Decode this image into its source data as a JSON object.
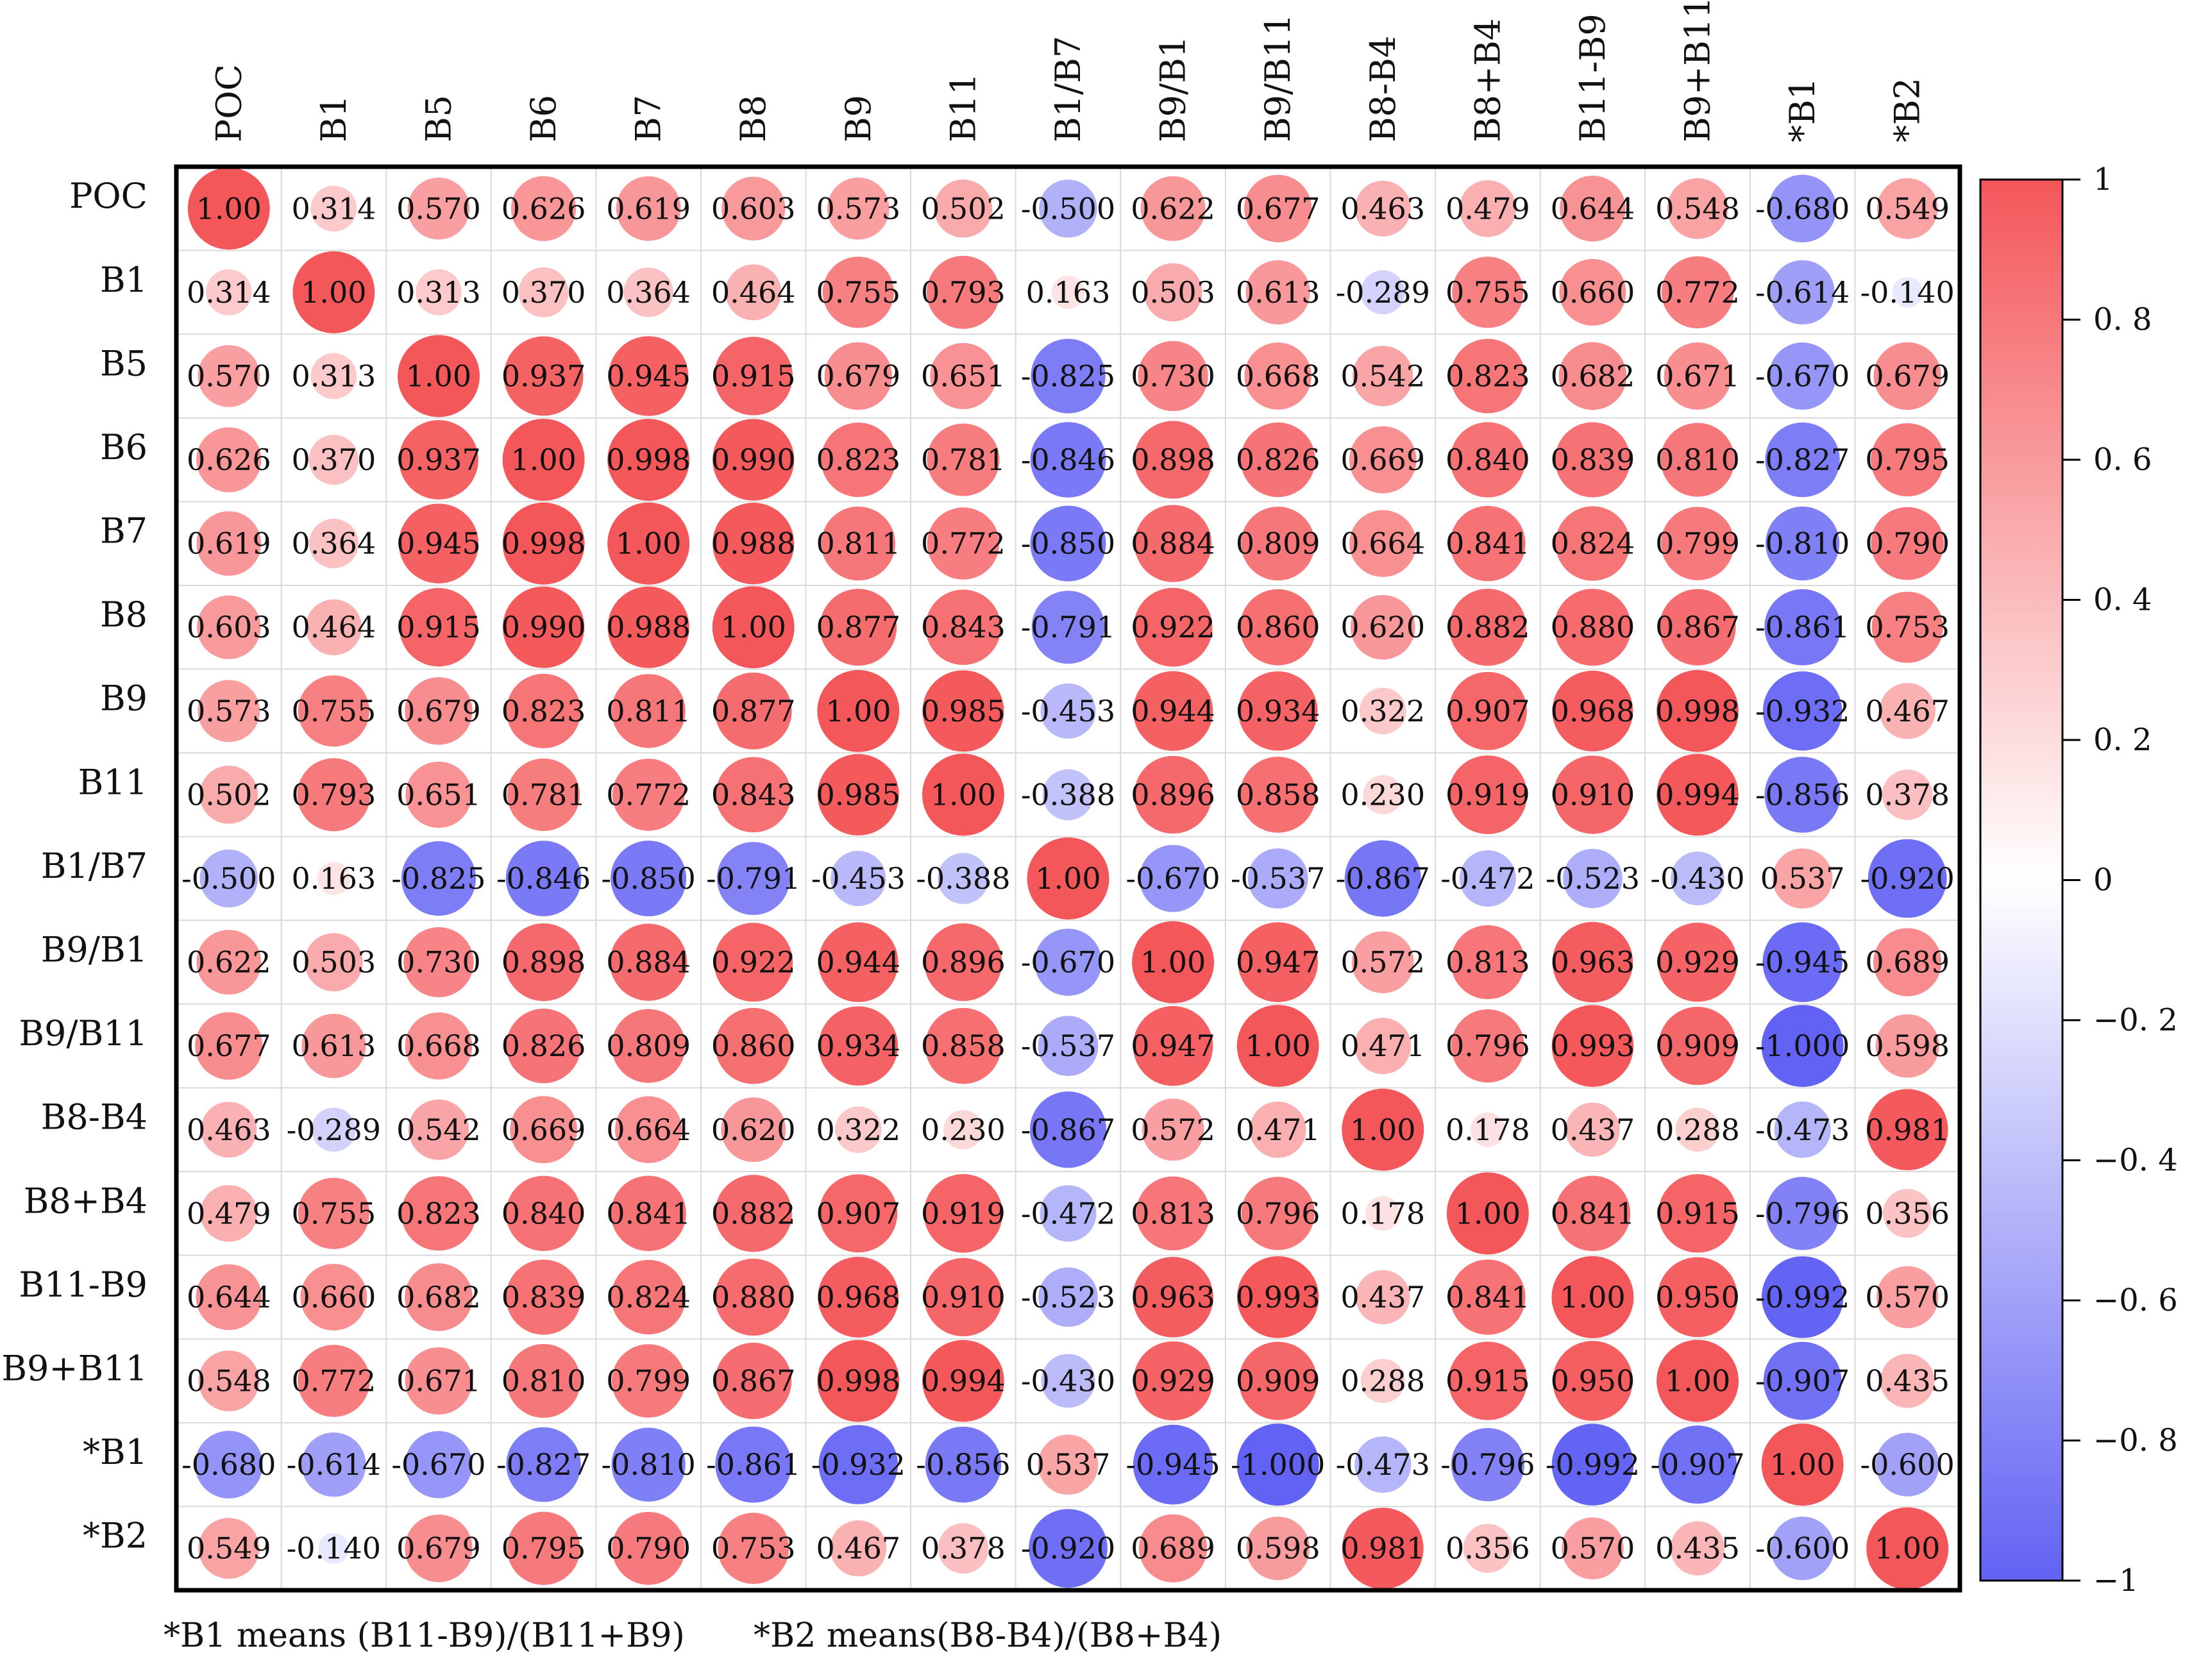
{
  "chart_data": {
    "type": "heatmap",
    "title": "",
    "variables": [
      "POC",
      "B1",
      "B5",
      "B6",
      "B7",
      "B8",
      "B9",
      "B11",
      "B1/B7",
      "B9/B1",
      "B9/B11",
      "B8-B4",
      "B8+B4",
      "B11-B9",
      "B9+B11",
      "*B1",
      "*B2"
    ],
    "matrix": [
      [
        "1.00",
        "0.314",
        "0.570",
        "0.626",
        "0.619",
        "0.603",
        "0.573",
        "0.502",
        "-0.500",
        "0.622",
        "0.677",
        "0.463",
        "0.479",
        "0.644",
        "0.548",
        "-0.680",
        "0.549"
      ],
      [
        "0.314",
        "1.00",
        "0.313",
        "0.370",
        "0.364",
        "0.464",
        "0.755",
        "0.793",
        "0.163",
        "0.503",
        "0.613",
        "-0.289",
        "0.755",
        "0.660",
        "0.772",
        "-0.614",
        "-0.140"
      ],
      [
        "0.570",
        "0.313",
        "1.00",
        "0.937",
        "0.945",
        "0.915",
        "0.679",
        "0.651",
        "-0.825",
        "0.730",
        "0.668",
        "0.542",
        "0.823",
        "0.682",
        "0.671",
        "-0.670",
        "0.679"
      ],
      [
        "0.626",
        "0.370",
        "0.937",
        "1.00",
        "0.998",
        "0.990",
        "0.823",
        "0.781",
        "-0.846",
        "0.898",
        "0.826",
        "0.669",
        "0.840",
        "0.839",
        "0.810",
        "-0.827",
        "0.795"
      ],
      [
        "0.619",
        "0.364",
        "0.945",
        "0.998",
        "1.00",
        "0.988",
        "0.811",
        "0.772",
        "-0.850",
        "0.884",
        "0.809",
        "0.664",
        "0.841",
        "0.824",
        "0.799",
        "-0.810",
        "0.790"
      ],
      [
        "0.603",
        "0.464",
        "0.915",
        "0.990",
        "0.988",
        "1.00",
        "0.877",
        "0.843",
        "-0.791",
        "0.922",
        "0.860",
        "0.620",
        "0.882",
        "0.880",
        "0.867",
        "-0.861",
        "0.753"
      ],
      [
        "0.573",
        "0.755",
        "0.679",
        "0.823",
        "0.811",
        "0.877",
        "1.00",
        "0.985",
        "-0.453",
        "0.944",
        "0.934",
        "0.322",
        "0.907",
        "0.968",
        "0.998",
        "-0.932",
        "0.467"
      ],
      [
        "0.502",
        "0.793",
        "0.651",
        "0.781",
        "0.772",
        "0.843",
        "0.985",
        "1.00",
        "-0.388",
        "0.896",
        "0.858",
        "0.230",
        "0.919",
        "0.910",
        "0.994",
        "-0.856",
        "0.378"
      ],
      [
        "-0.500",
        "0.163",
        "-0.825",
        "-0.846",
        "-0.850",
        "-0.791",
        "-0.453",
        "-0.388",
        "1.00",
        "-0.670",
        "-0.537",
        "-0.867",
        "-0.472",
        "-0.523",
        "-0.430",
        "0.537",
        "-0.920"
      ],
      [
        "0.622",
        "0.503",
        "0.730",
        "0.898",
        "0.884",
        "0.922",
        "0.944",
        "0.896",
        "-0.670",
        "1.00",
        "0.947",
        "0.572",
        "0.813",
        "0.963",
        "0.929",
        "-0.945",
        "0.689"
      ],
      [
        "0.677",
        "0.613",
        "0.668",
        "0.826",
        "0.809",
        "0.860",
        "0.934",
        "0.858",
        "-0.537",
        "0.947",
        "1.00",
        "0.471",
        "0.796",
        "0.993",
        "0.909",
        "-1.000",
        "0.598"
      ],
      [
        "0.463",
        "-0.289",
        "0.542",
        "0.669",
        "0.664",
        "0.620",
        "0.322",
        "0.230",
        "-0.867",
        "0.572",
        "0.471",
        "1.00",
        "0.178",
        "0.437",
        "0.288",
        "-0.473",
        "0.981"
      ],
      [
        "0.479",
        "0.755",
        "0.823",
        "0.840",
        "0.841",
        "0.882",
        "0.907",
        "0.919",
        "-0.472",
        "0.813",
        "0.796",
        "0.178",
        "1.00",
        "0.841",
        "0.915",
        "-0.796",
        "0.356"
      ],
      [
        "0.644",
        "0.660",
        "0.682",
        "0.839",
        "0.824",
        "0.880",
        "0.968",
        "0.910",
        "-0.523",
        "0.963",
        "0.993",
        "0.437",
        "0.841",
        "1.00",
        "0.950",
        "-0.992",
        "0.570"
      ],
      [
        "0.548",
        "0.772",
        "0.671",
        "0.810",
        "0.799",
        "0.867",
        "0.998",
        "0.994",
        "-0.430",
        "0.929",
        "0.909",
        "0.288",
        "0.915",
        "0.950",
        "1.00",
        "-0.907",
        "0.435"
      ],
      [
        "-0.680",
        "-0.614",
        "-0.670",
        "-0.827",
        "-0.810",
        "-0.861",
        "-0.932",
        "-0.856",
        "0.537",
        "-0.945",
        "-1.000",
        "-0.473",
        "-0.796",
        "-0.992",
        "-0.907",
        "1.00",
        "-0.600"
      ],
      [
        "0.549",
        "-0.140",
        "0.679",
        "0.795",
        "0.790",
        "0.753",
        "0.467",
        "0.378",
        "-0.920",
        "0.689",
        "0.598",
        "0.981",
        "0.356",
        "0.570",
        "0.435",
        "-0.600",
        "1.00"
      ]
    ],
    "colorbar": {
      "range": [
        -1,
        1
      ],
      "ticks": [
        "1",
        "0. 8",
        "0. 6",
        "0. 4",
        "0. 2",
        "0",
        "−0. 2",
        "−0. 4",
        "−0. 6",
        "−0. 8",
        "−1"
      ],
      "tick_values": [
        1,
        0.8,
        0.6,
        0.4,
        0.2,
        0,
        -0.2,
        -0.4,
        -0.6,
        -0.8,
        -1
      ],
      "color_positive": "#f4575a",
      "color_zero": "#ffffff",
      "color_negative": "#6262f4"
    },
    "notes": [
      "*B1 means (B11-B9)/(B11+B9)",
      "*B2 means(B8-B4)/(B8+B4)"
    ]
  }
}
